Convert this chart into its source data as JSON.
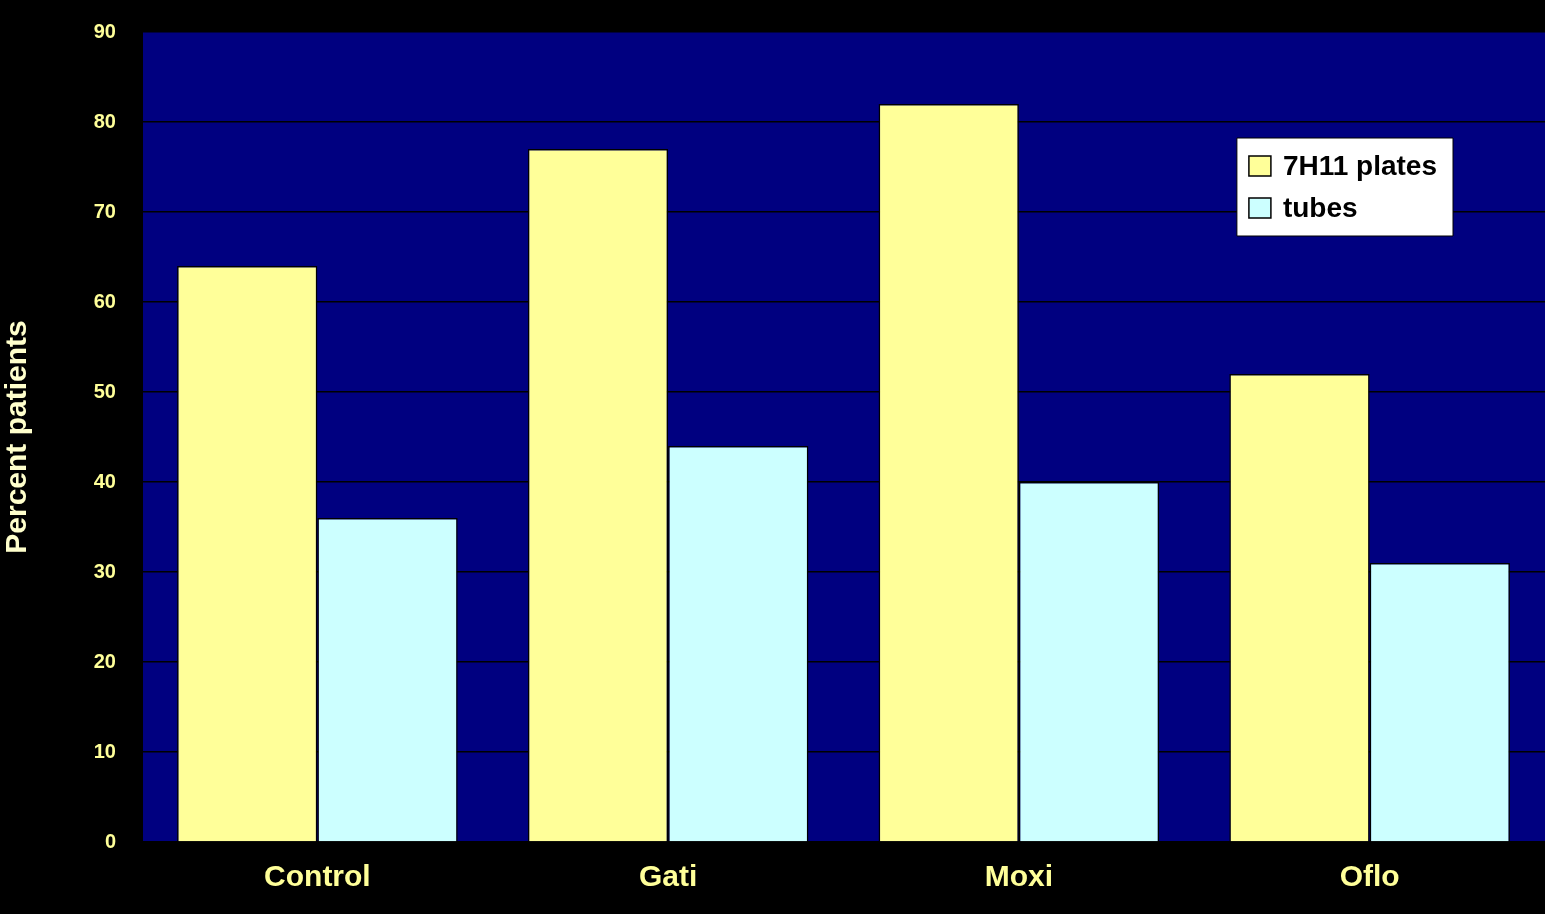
{
  "chart_data": {
    "type": "bar",
    "ylabel": "Percent patients",
    "categories": [
      "Control",
      "Gati",
      "Moxi",
      "Oflo"
    ],
    "series": [
      {
        "name": "7H11 plates",
        "color": "#ffff99",
        "values": [
          64,
          77,
          82,
          52
        ]
      },
      {
        "name": "tubes",
        "color": "#ccffff",
        "values": [
          36,
          44,
          40,
          31
        ]
      }
    ],
    "ylim": [
      0,
      90
    ],
    "yticks": [
      0,
      10,
      20,
      30,
      40,
      50,
      60,
      70,
      80,
      90
    ],
    "grid": "y",
    "legend": "top right"
  }
}
